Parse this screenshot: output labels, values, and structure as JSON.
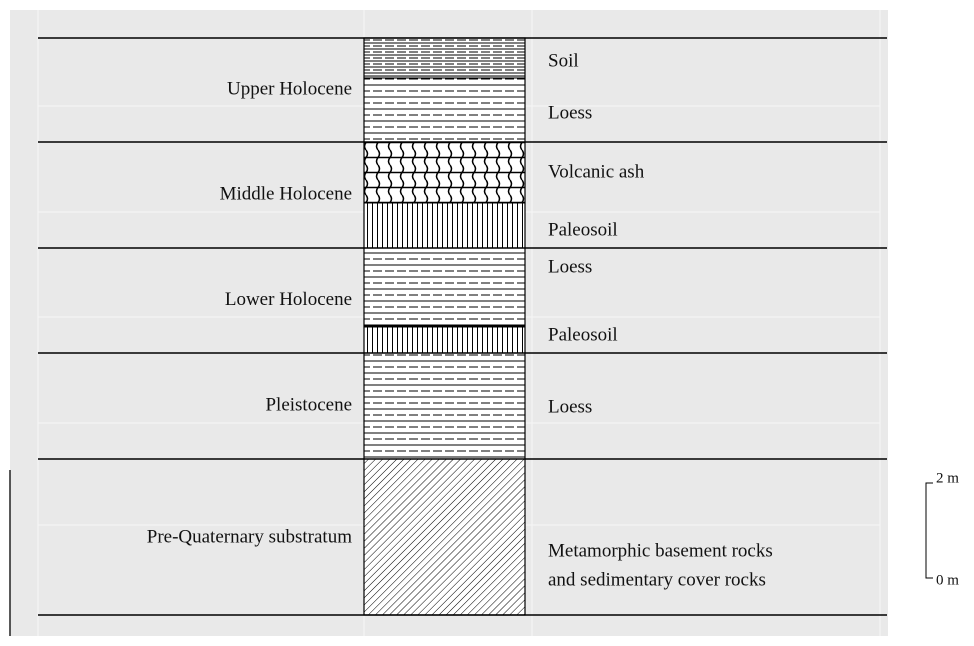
{
  "periods": [
    {
      "label": "Upper Holocene",
      "layers": [
        {
          "lines": [
            "Soil"
          ]
        },
        {
          "lines": [
            "Loess"
          ]
        }
      ]
    },
    {
      "label": "Middle Holocene",
      "layers": [
        {
          "lines": [
            "Volcanic ash"
          ]
        },
        {
          "lines": [
            "Paleosoil"
          ]
        }
      ]
    },
    {
      "label": "Lower Holocene",
      "layers": [
        {
          "lines": [
            "Loess"
          ]
        },
        {
          "lines": [
            "Paleosoil"
          ]
        }
      ]
    },
    {
      "label": "Pleistocene",
      "layers": [
        {
          "lines": [
            "Loess"
          ]
        }
      ]
    },
    {
      "label": "Pre-Quaternary substratum",
      "layers": [
        {
          "lines": [
            "Metamorphic basement rocks",
            "and sedimentary cover rocks"
          ]
        }
      ]
    }
  ],
  "scale": {
    "top": "2 m",
    "bottom": "0 m"
  }
}
